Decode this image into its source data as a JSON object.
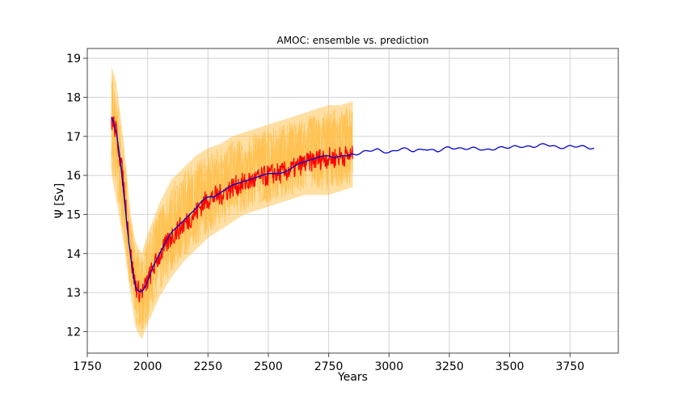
{
  "chart_data": {
    "type": "line",
    "title": "AMOC: ensemble vs. prediction",
    "xlabel": "Years",
    "ylabel": "Ψ [Sv]",
    "xlim": [
      1750,
      3950
    ],
    "ylim": [
      11.45,
      19.25
    ],
    "grid": true,
    "x_ticks": [
      1750,
      2000,
      2250,
      2500,
      2750,
      3000,
      3250,
      3500,
      3750
    ],
    "y_ticks": [
      12,
      13,
      14,
      15,
      16,
      17,
      18,
      19
    ],
    "colors": {
      "ensemble_band": "#ffb733",
      "ensemble_members": "#ffc04d",
      "ensemble_mean": "#ff0000",
      "prediction": "#0000cc",
      "grid": "#d3d3d3",
      "axes": "#444444"
    },
    "series": [
      {
        "role": "ensemble-envelope",
        "x": [
          1850,
          1870,
          1900,
          1930,
          1950,
          1975,
          2000,
          2050,
          2100,
          2150,
          2200,
          2250,
          2300,
          2350,
          2400,
          2450,
          2500,
          2550,
          2600,
          2650,
          2700,
          2750,
          2800,
          2850
        ],
        "lower": [
          16.0,
          15.4,
          14.3,
          12.9,
          12.1,
          11.8,
          12.2,
          12.9,
          13.4,
          13.8,
          14.1,
          14.4,
          14.6,
          14.8,
          15.0,
          15.1,
          15.2,
          15.3,
          15.4,
          15.5,
          15.5,
          15.5,
          15.6,
          15.7
        ],
        "upper": [
          18.8,
          18.4,
          16.9,
          15.0,
          14.3,
          14.0,
          14.5,
          15.3,
          15.9,
          16.2,
          16.5,
          16.7,
          16.8,
          17.0,
          17.1,
          17.2,
          17.3,
          17.4,
          17.5,
          17.6,
          17.7,
          17.8,
          17.8,
          17.9
        ]
      },
      {
        "role": "ensemble-mean",
        "x": [
          1850,
          1860,
          1870,
          1880,
          1890,
          1900,
          1910,
          1920,
          1930,
          1940,
          1950,
          1960,
          1970,
          1980,
          1990,
          2000,
          2025,
          2050,
          2075,
          2100,
          2125,
          2150,
          2175,
          2200,
          2225,
          2250,
          2275,
          2300,
          2325,
          2350,
          2375,
          2400,
          2425,
          2450,
          2475,
          2500,
          2525,
          2550,
          2575,
          2600,
          2625,
          2650,
          2675,
          2700,
          2725,
          2750,
          2775,
          2800,
          2825,
          2850
        ],
        "y": [
          17.4,
          17.3,
          17.1,
          16.7,
          16.3,
          15.8,
          15.2,
          14.6,
          14.0,
          13.5,
          13.2,
          13.05,
          13.0,
          13.05,
          13.15,
          13.3,
          13.65,
          13.95,
          14.2,
          14.45,
          14.6,
          14.75,
          14.9,
          15.05,
          15.25,
          15.4,
          15.45,
          15.5,
          15.6,
          15.7,
          15.75,
          15.8,
          15.85,
          15.9,
          15.95,
          16.0,
          16.05,
          16.05,
          16.1,
          16.15,
          16.25,
          16.3,
          16.35,
          16.4,
          16.45,
          16.45,
          16.45,
          16.5,
          16.5,
          16.5
        ]
      },
      {
        "role": "prediction",
        "x": [
          1850,
          1860,
          1870,
          1880,
          1890,
          1900,
          1910,
          1920,
          1930,
          1940,
          1950,
          1960,
          1970,
          1980,
          1990,
          2000,
          2025,
          2050,
          2075,
          2100,
          2125,
          2150,
          2175,
          2200,
          2225,
          2250,
          2275,
          2300,
          2325,
          2350,
          2375,
          2400,
          2425,
          2450,
          2475,
          2500,
          2525,
          2550,
          2575,
          2600,
          2625,
          2650,
          2675,
          2700,
          2725,
          2750,
          2775,
          2800,
          2825,
          2850,
          2900,
          2950,
          3000,
          3050,
          3100,
          3150,
          3200,
          3250,
          3300,
          3350,
          3400,
          3450,
          3500,
          3550,
          3600,
          3650,
          3700,
          3750,
          3800,
          3850
        ],
        "y": [
          17.5,
          17.35,
          17.1,
          16.7,
          16.2,
          15.6,
          15.0,
          14.4,
          13.9,
          13.45,
          13.15,
          13.05,
          13.02,
          13.05,
          13.15,
          13.3,
          13.7,
          14.0,
          14.3,
          14.55,
          14.7,
          14.85,
          15.0,
          15.15,
          15.35,
          15.45,
          15.45,
          15.55,
          15.65,
          15.75,
          15.8,
          15.85,
          15.9,
          15.95,
          16.0,
          16.05,
          16.05,
          16.05,
          16.1,
          16.2,
          16.3,
          16.35,
          16.4,
          16.45,
          16.5,
          16.5,
          16.45,
          16.5,
          16.5,
          16.55,
          16.6,
          16.65,
          16.6,
          16.68,
          16.62,
          16.7,
          16.6,
          16.72,
          16.7,
          16.68,
          16.65,
          16.72,
          16.7,
          16.75,
          16.75,
          16.78,
          16.72,
          16.75,
          16.72,
          16.7
        ]
      }
    ]
  }
}
